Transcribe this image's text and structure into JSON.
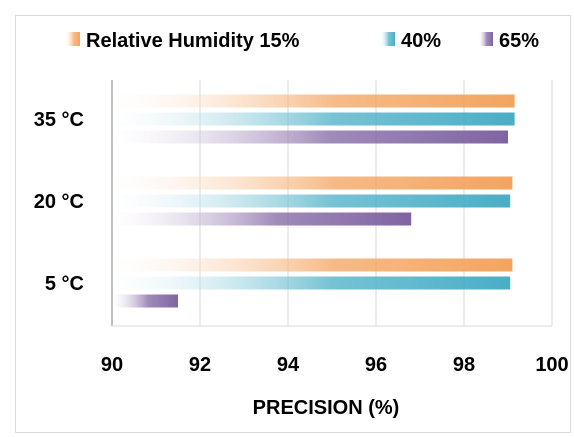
{
  "chart_data": {
    "type": "bar",
    "orientation": "horizontal",
    "categories": [
      "5 °C",
      "20 °C",
      "35 °C"
    ],
    "series": [
      {
        "name": "Relative Humidity 15%",
        "values": [
          99.1,
          99.1,
          99.15
        ],
        "color": "#f4a460"
      },
      {
        "name": "40%",
        "values": [
          99.05,
          99.05,
          99.15
        ],
        "color": "#4aaec6"
      },
      {
        "name": "65%",
        "values": [
          91.5,
          96.8,
          99.0
        ],
        "color": "#8064a2"
      }
    ],
    "xlabel": "PRECISION (%)",
    "ylabel": "",
    "xlim": [
      90,
      100
    ],
    "xticks": [
      90,
      92,
      94,
      96,
      98,
      100
    ],
    "grid": "vertical",
    "legend_position": "top"
  }
}
